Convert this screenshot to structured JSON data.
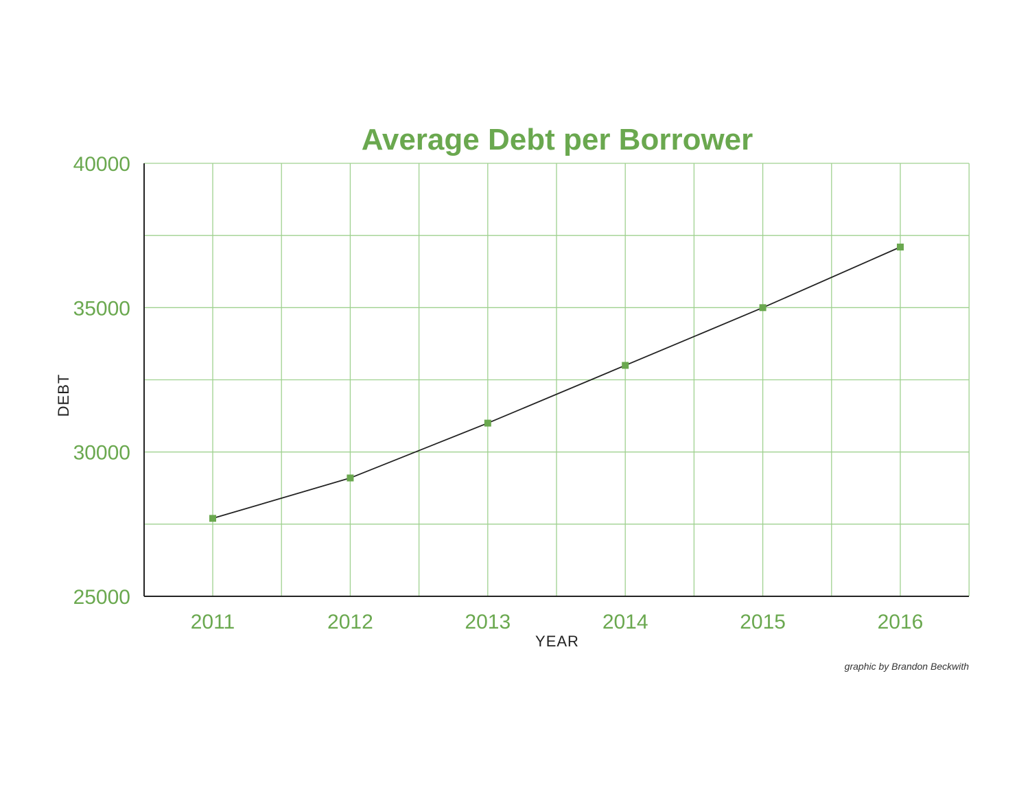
{
  "chart_data": {
    "type": "line",
    "title": "Average Debt per Borrower",
    "xlabel": "YEAR",
    "ylabel": "DEBT",
    "categories": [
      "2011",
      "2012",
      "2013",
      "2014",
      "2015",
      "2016"
    ],
    "values": [
      27700,
      29100,
      31000,
      33000,
      35000,
      37100
    ],
    "ylim": [
      25000,
      40000
    ],
    "yticks": [
      "40000",
      "35000",
      "30000",
      "25000"
    ],
    "grid": true,
    "legend": "none",
    "credit": "graphic by Brandon Beckwith",
    "colors": {
      "accent": "#6aa84f",
      "grid": "#9fd18f",
      "line": "#222222",
      "axis": "#222222"
    }
  }
}
